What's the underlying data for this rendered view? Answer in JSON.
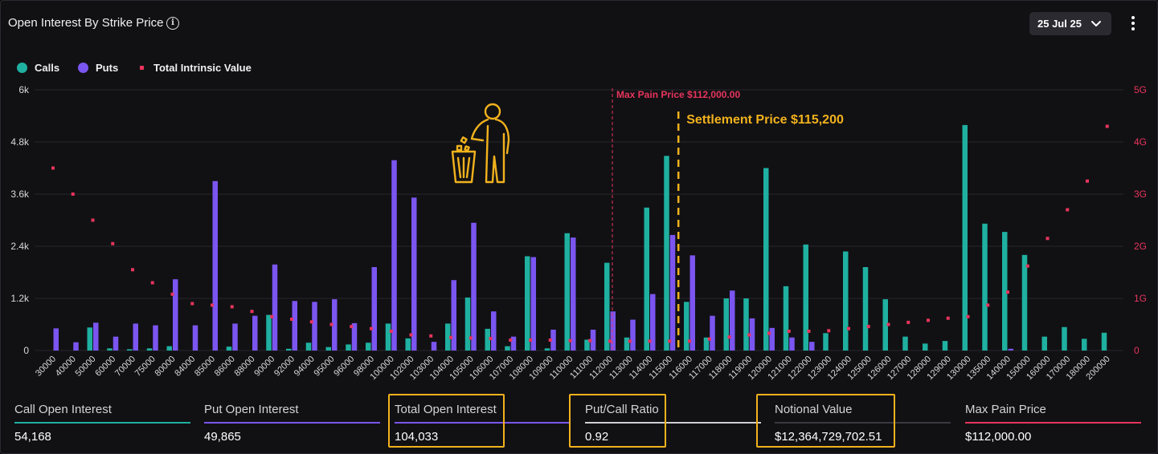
{
  "header": {
    "title": "Open Interest By Strike Price",
    "date": "25 Jul 25"
  },
  "legend": [
    {
      "label": "Calls",
      "color": "#1fb0a0"
    },
    {
      "label": "Puts",
      "color": "#7b55f0"
    },
    {
      "label": "Total Intrinsic Value",
      "color": "#e8345c"
    }
  ],
  "annotations": {
    "max_pain": "Max Pain Price $112,000.00",
    "settlement": "Settlement Price $115,200"
  },
  "chart_data": {
    "type": "bar",
    "categories": [
      "30000",
      "40000",
      "50000",
      "60000",
      "70000",
      "75000",
      "80000",
      "84000",
      "85000",
      "86000",
      "88000",
      "90000",
      "92000",
      "94000",
      "95000",
      "96000",
      "98000",
      "100000",
      "102000",
      "103000",
      "104000",
      "105000",
      "106000",
      "107000",
      "108000",
      "109000",
      "110000",
      "111000",
      "112000",
      "113000",
      "114000",
      "115000",
      "116000",
      "117000",
      "118000",
      "119000",
      "120000",
      "121000",
      "122000",
      "123000",
      "124000",
      "125000",
      "126000",
      "127000",
      "128000",
      "129000",
      "130000",
      "135000",
      "140000",
      "150000",
      "160000",
      "170000",
      "180000",
      "200000"
    ],
    "series": [
      {
        "name": "Calls",
        "color": "#1fb0a0",
        "values": [
          0,
          0,
          530,
          50,
          30,
          50,
          100,
          0,
          0,
          90,
          0,
          820,
          40,
          180,
          80,
          140,
          180,
          620,
          280,
          0,
          620,
          1220,
          500,
          100,
          2170,
          50,
          2700,
          250,
          2020,
          300,
          3290,
          4480,
          1120,
          300,
          1200,
          1200,
          4200,
          1480,
          2440,
          400,
          2280,
          1920,
          1180,
          320,
          160,
          220,
          5190,
          2920,
          2730,
          2200,
          320,
          540,
          270,
          410
        ]
      },
      {
        "name": "Puts",
        "color": "#7b55f0",
        "values": [
          510,
          190,
          640,
          320,
          620,
          580,
          1640,
          580,
          3900,
          620,
          800,
          1980,
          1140,
          1120,
          1180,
          630,
          1920,
          4380,
          3520,
          200,
          1620,
          2940,
          900,
          320,
          2150,
          480,
          2600,
          480,
          900,
          710,
          1300,
          2660,
          2190,
          800,
          1380,
          740,
          520,
          300,
          200,
          0,
          0,
          0,
          0,
          0,
          0,
          0,
          0,
          0,
          40,
          0,
          0,
          0,
          0,
          0
        ]
      },
      {
        "name": "Total Intrinsic Value",
        "color": "#e8345c",
        "axis": "right",
        "values": [
          3.5,
          3.0,
          2.5,
          2.05,
          1.55,
          1.3,
          1.08,
          0.9,
          0.87,
          0.84,
          0.75,
          0.65,
          0.6,
          0.55,
          0.5,
          0.46,
          0.42,
          0.37,
          0.3,
          0.28,
          0.25,
          0.24,
          0.23,
          0.2,
          0.2,
          0.2,
          0.19,
          0.19,
          0.18,
          0.18,
          0.18,
          0.18,
          0.18,
          0.22,
          0.26,
          0.3,
          0.33,
          0.37,
          0.37,
          0.38,
          0.42,
          0.46,
          0.5,
          0.54,
          0.58,
          0.62,
          0.65,
          0.87,
          1.12,
          1.62,
          2.15,
          2.7,
          3.25,
          4.3
        ]
      }
    ],
    "left_axis": {
      "ticks": [
        "0",
        "1.2k",
        "2.4k",
        "3.6k",
        "4.8k",
        "6k"
      ],
      "ylim": [
        0,
        6000
      ]
    },
    "right_axis": {
      "ticks": [
        "0",
        "1G",
        "2G",
        "3G",
        "4G",
        "5G"
      ],
      "ylim": [
        0,
        5
      ]
    },
    "max_pain_strike": "112000",
    "settlement_strike_value": 115200,
    "grid": true
  },
  "stats": [
    {
      "label": "Call Open Interest",
      "value": "54,168",
      "color": "#1fb0a0"
    },
    {
      "label": "Put Open Interest",
      "value": "49,865",
      "color": "#7b55f0"
    },
    {
      "label": "Total Open Interest",
      "value": "104,033",
      "color": "#7b55f0"
    },
    {
      "label": "Put/Call Ratio",
      "value": "0.92",
      "color": "#cfcfd4"
    },
    {
      "label": "Notional Value",
      "value": "$12,364,729,702.51",
      "color": "#3a3a40"
    },
    {
      "label": "Max Pain Price",
      "value": "$112,000.00",
      "color": "#e8345c"
    }
  ]
}
